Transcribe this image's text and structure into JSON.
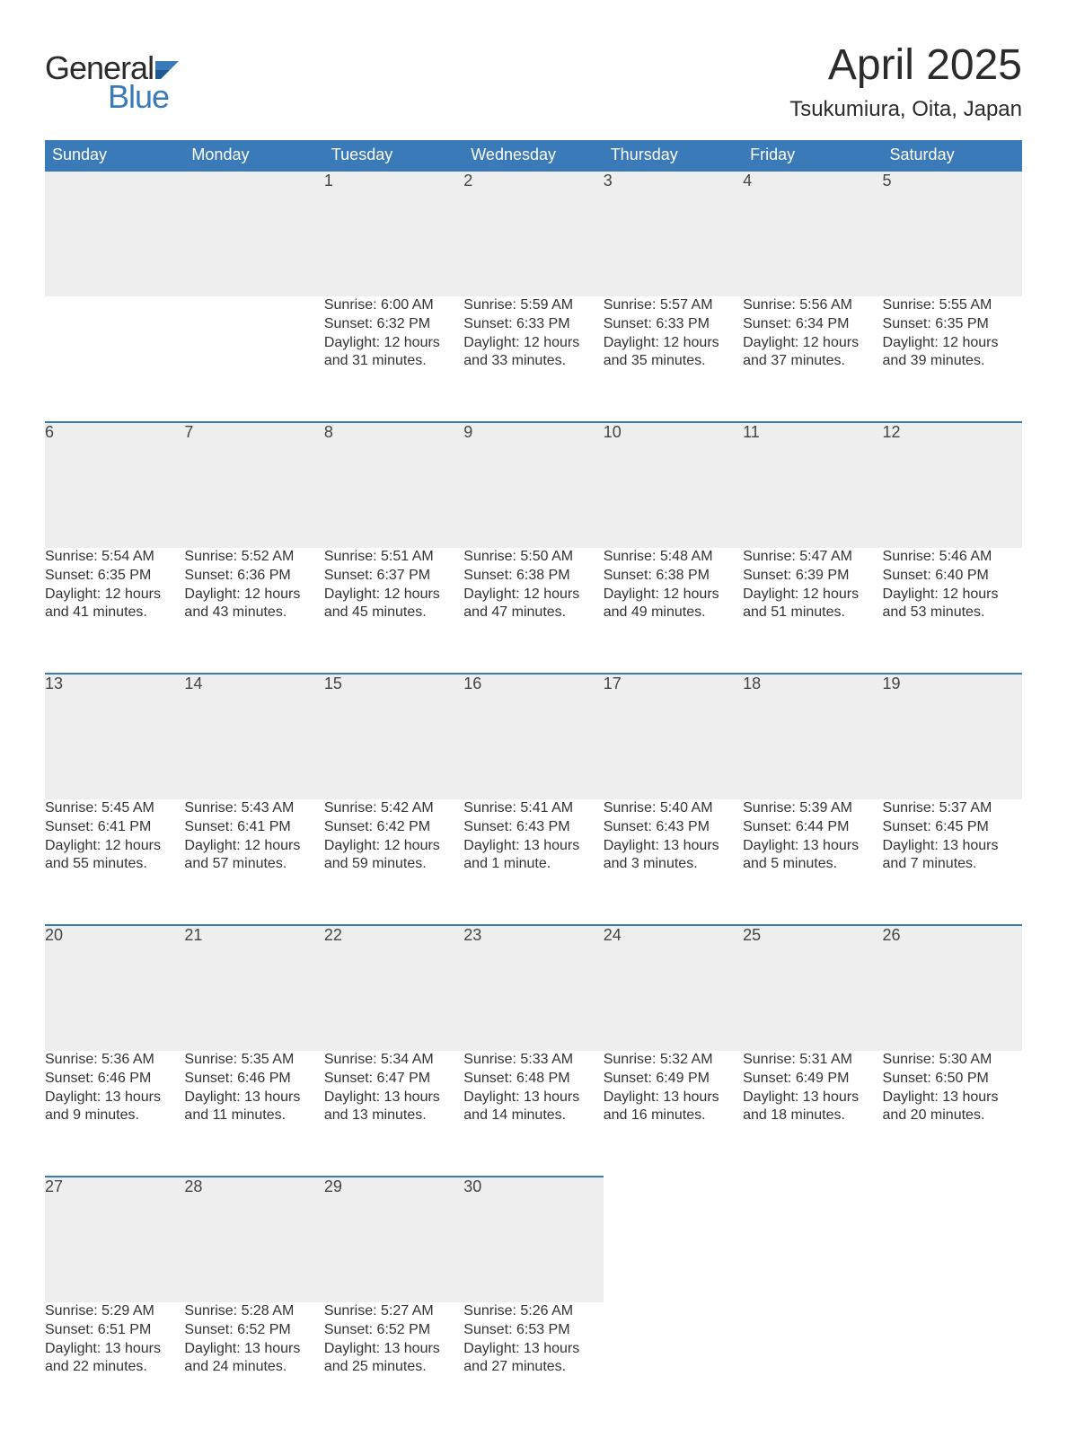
{
  "logo": {
    "text1": "General",
    "text2": "Blue"
  },
  "title": "April 2025",
  "location": "Tsukumiura, Oita, Japan",
  "colors": {
    "header_bg": "#3a7ab8",
    "header_text": "#ffffff",
    "daynum_bg": "#eeeeee",
    "daynum_border": "#3a7ab8",
    "body_text": "#333333",
    "logo_blue": "#3a7ab8",
    "page_bg": "#ffffff"
  },
  "weekdays": [
    "Sunday",
    "Monday",
    "Tuesday",
    "Wednesday",
    "Thursday",
    "Friday",
    "Saturday"
  ],
  "weeks": [
    [
      {
        "day": "",
        "sunrise": "",
        "sunset": "",
        "daylight1": "",
        "daylight2": ""
      },
      {
        "day": "",
        "sunrise": "",
        "sunset": "",
        "daylight1": "",
        "daylight2": ""
      },
      {
        "day": "1",
        "sunrise": "Sunrise: 6:00 AM",
        "sunset": "Sunset: 6:32 PM",
        "daylight1": "Daylight: 12 hours",
        "daylight2": "and 31 minutes."
      },
      {
        "day": "2",
        "sunrise": "Sunrise: 5:59 AM",
        "sunset": "Sunset: 6:33 PM",
        "daylight1": "Daylight: 12 hours",
        "daylight2": "and 33 minutes."
      },
      {
        "day": "3",
        "sunrise": "Sunrise: 5:57 AM",
        "sunset": "Sunset: 6:33 PM",
        "daylight1": "Daylight: 12 hours",
        "daylight2": "and 35 minutes."
      },
      {
        "day": "4",
        "sunrise": "Sunrise: 5:56 AM",
        "sunset": "Sunset: 6:34 PM",
        "daylight1": "Daylight: 12 hours",
        "daylight2": "and 37 minutes."
      },
      {
        "day": "5",
        "sunrise": "Sunrise: 5:55 AM",
        "sunset": "Sunset: 6:35 PM",
        "daylight1": "Daylight: 12 hours",
        "daylight2": "and 39 minutes."
      }
    ],
    [
      {
        "day": "6",
        "sunrise": "Sunrise: 5:54 AM",
        "sunset": "Sunset: 6:35 PM",
        "daylight1": "Daylight: 12 hours",
        "daylight2": "and 41 minutes."
      },
      {
        "day": "7",
        "sunrise": "Sunrise: 5:52 AM",
        "sunset": "Sunset: 6:36 PM",
        "daylight1": "Daylight: 12 hours",
        "daylight2": "and 43 minutes."
      },
      {
        "day": "8",
        "sunrise": "Sunrise: 5:51 AM",
        "sunset": "Sunset: 6:37 PM",
        "daylight1": "Daylight: 12 hours",
        "daylight2": "and 45 minutes."
      },
      {
        "day": "9",
        "sunrise": "Sunrise: 5:50 AM",
        "sunset": "Sunset: 6:38 PM",
        "daylight1": "Daylight: 12 hours",
        "daylight2": "and 47 minutes."
      },
      {
        "day": "10",
        "sunrise": "Sunrise: 5:48 AM",
        "sunset": "Sunset: 6:38 PM",
        "daylight1": "Daylight: 12 hours",
        "daylight2": "and 49 minutes."
      },
      {
        "day": "11",
        "sunrise": "Sunrise: 5:47 AM",
        "sunset": "Sunset: 6:39 PM",
        "daylight1": "Daylight: 12 hours",
        "daylight2": "and 51 minutes."
      },
      {
        "day": "12",
        "sunrise": "Sunrise: 5:46 AM",
        "sunset": "Sunset: 6:40 PM",
        "daylight1": "Daylight: 12 hours",
        "daylight2": "and 53 minutes."
      }
    ],
    [
      {
        "day": "13",
        "sunrise": "Sunrise: 5:45 AM",
        "sunset": "Sunset: 6:41 PM",
        "daylight1": "Daylight: 12 hours",
        "daylight2": "and 55 minutes."
      },
      {
        "day": "14",
        "sunrise": "Sunrise: 5:43 AM",
        "sunset": "Sunset: 6:41 PM",
        "daylight1": "Daylight: 12 hours",
        "daylight2": "and 57 minutes."
      },
      {
        "day": "15",
        "sunrise": "Sunrise: 5:42 AM",
        "sunset": "Sunset: 6:42 PM",
        "daylight1": "Daylight: 12 hours",
        "daylight2": "and 59 minutes."
      },
      {
        "day": "16",
        "sunrise": "Sunrise: 5:41 AM",
        "sunset": "Sunset: 6:43 PM",
        "daylight1": "Daylight: 13 hours",
        "daylight2": "and 1 minute."
      },
      {
        "day": "17",
        "sunrise": "Sunrise: 5:40 AM",
        "sunset": "Sunset: 6:43 PM",
        "daylight1": "Daylight: 13 hours",
        "daylight2": "and 3 minutes."
      },
      {
        "day": "18",
        "sunrise": "Sunrise: 5:39 AM",
        "sunset": "Sunset: 6:44 PM",
        "daylight1": "Daylight: 13 hours",
        "daylight2": "and 5 minutes."
      },
      {
        "day": "19",
        "sunrise": "Sunrise: 5:37 AM",
        "sunset": "Sunset: 6:45 PM",
        "daylight1": "Daylight: 13 hours",
        "daylight2": "and 7 minutes."
      }
    ],
    [
      {
        "day": "20",
        "sunrise": "Sunrise: 5:36 AM",
        "sunset": "Sunset: 6:46 PM",
        "daylight1": "Daylight: 13 hours",
        "daylight2": "and 9 minutes."
      },
      {
        "day": "21",
        "sunrise": "Sunrise: 5:35 AM",
        "sunset": "Sunset: 6:46 PM",
        "daylight1": "Daylight: 13 hours",
        "daylight2": "and 11 minutes."
      },
      {
        "day": "22",
        "sunrise": "Sunrise: 5:34 AM",
        "sunset": "Sunset: 6:47 PM",
        "daylight1": "Daylight: 13 hours",
        "daylight2": "and 13 minutes."
      },
      {
        "day": "23",
        "sunrise": "Sunrise: 5:33 AM",
        "sunset": "Sunset: 6:48 PM",
        "daylight1": "Daylight: 13 hours",
        "daylight2": "and 14 minutes."
      },
      {
        "day": "24",
        "sunrise": "Sunrise: 5:32 AM",
        "sunset": "Sunset: 6:49 PM",
        "daylight1": "Daylight: 13 hours",
        "daylight2": "and 16 minutes."
      },
      {
        "day": "25",
        "sunrise": "Sunrise: 5:31 AM",
        "sunset": "Sunset: 6:49 PM",
        "daylight1": "Daylight: 13 hours",
        "daylight2": "and 18 minutes."
      },
      {
        "day": "26",
        "sunrise": "Sunrise: 5:30 AM",
        "sunset": "Sunset: 6:50 PM",
        "daylight1": "Daylight: 13 hours",
        "daylight2": "and 20 minutes."
      }
    ],
    [
      {
        "day": "27",
        "sunrise": "Sunrise: 5:29 AM",
        "sunset": "Sunset: 6:51 PM",
        "daylight1": "Daylight: 13 hours",
        "daylight2": "and 22 minutes."
      },
      {
        "day": "28",
        "sunrise": "Sunrise: 5:28 AM",
        "sunset": "Sunset: 6:52 PM",
        "daylight1": "Daylight: 13 hours",
        "daylight2": "and 24 minutes."
      },
      {
        "day": "29",
        "sunrise": "Sunrise: 5:27 AM",
        "sunset": "Sunset: 6:52 PM",
        "daylight1": "Daylight: 13 hours",
        "daylight2": "and 25 minutes."
      },
      {
        "day": "30",
        "sunrise": "Sunrise: 5:26 AM",
        "sunset": "Sunset: 6:53 PM",
        "daylight1": "Daylight: 13 hours",
        "daylight2": "and 27 minutes."
      },
      {
        "day": "",
        "sunrise": "",
        "sunset": "",
        "daylight1": "",
        "daylight2": ""
      },
      {
        "day": "",
        "sunrise": "",
        "sunset": "",
        "daylight1": "",
        "daylight2": ""
      },
      {
        "day": "",
        "sunrise": "",
        "sunset": "",
        "daylight1": "",
        "daylight2": ""
      }
    ]
  ]
}
